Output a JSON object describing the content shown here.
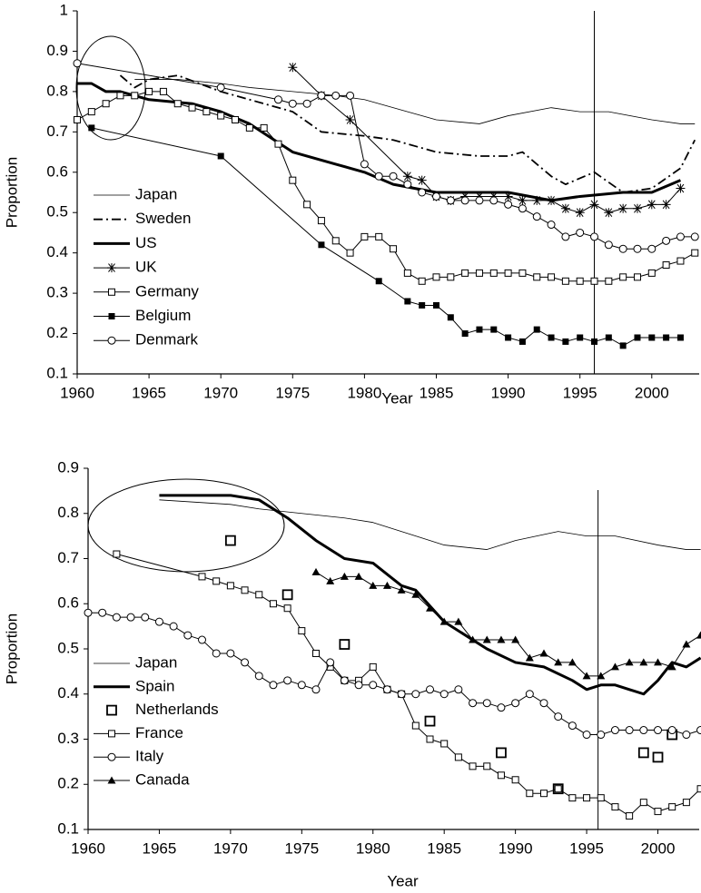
{
  "chart_data": [
    {
      "type": "line",
      "xlabel": "Year",
      "ylabel": "Proportion",
      "xlim": [
        1960,
        2003.3
      ],
      "xticks": [
        1960,
        1965,
        1970,
        1975,
        1980,
        1985,
        1990,
        1995,
        2000
      ],
      "ylim": [
        0.1,
        1
      ],
      "yticks": [
        0.1,
        0.2,
        0.3,
        0.4,
        0.5,
        0.6,
        0.7,
        0.8,
        0.9,
        1
      ],
      "reference_x": 1996,
      "series": [
        {
          "name": "Japan",
          "color": "#000000",
          "width": 0.8,
          "marker": "none",
          "x": [
            1964,
            1967,
            1970,
            1972,
            1975,
            1978,
            1980,
            1983,
            1985,
            1988,
            1990,
            1993,
            1995,
            1997,
            2000,
            2002,
            2003
          ],
          "values": [
            0.83,
            0.83,
            0.82,
            0.81,
            0.8,
            0.79,
            0.78,
            0.75,
            0.73,
            0.72,
            0.74,
            0.76,
            0.75,
            0.75,
            0.73,
            0.72,
            0.72
          ]
        },
        {
          "name": "Sweden",
          "color": "#000000",
          "width": 1.8,
          "marker": "none",
          "dash": "10 4 2 4",
          "x": [
            1963,
            1964,
            1965,
            1967,
            1970,
            1972,
            1975,
            1977,
            1980,
            1982,
            1985,
            1988,
            1990,
            1991,
            1993,
            1994,
            1996,
            1998,
            2000,
            2002,
            2003
          ],
          "values": [
            0.84,
            0.81,
            0.83,
            0.84,
            0.8,
            0.78,
            0.75,
            0.7,
            0.69,
            0.68,
            0.65,
            0.64,
            0.64,
            0.65,
            0.59,
            0.57,
            0.6,
            0.55,
            0.56,
            0.61,
            0.68
          ]
        },
        {
          "name": "US",
          "color": "#000000",
          "width": 3,
          "marker": "none",
          "x": [
            1960,
            1961,
            1962,
            1963,
            1965,
            1968,
            1970,
            1972,
            1975,
            1978,
            1980,
            1982,
            1985,
            1988,
            1990,
            1993,
            1995,
            1998,
            2000,
            2002
          ],
          "values": [
            0.82,
            0.82,
            0.8,
            0.8,
            0.78,
            0.77,
            0.75,
            0.72,
            0.65,
            0.62,
            0.6,
            0.57,
            0.55,
            0.55,
            0.55,
            0.53,
            0.54,
            0.55,
            0.55,
            0.58
          ]
        },
        {
          "name": "UK",
          "color": "#000000",
          "width": 1,
          "marker": "star",
          "x": [
            1975,
            1977,
            1979,
            1983,
            1984,
            1985,
            1986,
            1987,
            1988,
            1989,
            1990,
            1991,
            1992,
            1993,
            1994,
            1995,
            1996,
            1997,
            1998,
            1999,
            2000,
            2001,
            2002
          ],
          "values": [
            0.86,
            0.79,
            0.73,
            0.59,
            0.58,
            0.54,
            0.53,
            0.54,
            0.54,
            0.54,
            0.54,
            0.53,
            0.53,
            0.53,
            0.51,
            0.5,
            0.52,
            0.5,
            0.51,
            0.51,
            0.52,
            0.52,
            0.56
          ]
        },
        {
          "name": "Germany",
          "color": "#000000",
          "width": 1,
          "marker": "open-square",
          "x": [
            1960,
            1961,
            1962,
            1963,
            1964,
            1965,
            1966,
            1967,
            1968,
            1969,
            1970,
            1971,
            1972,
            1973,
            1974,
            1975,
            1976,
            1977,
            1978,
            1979,
            1980,
            1981,
            1982,
            1983,
            1984,
            1985,
            1986,
            1987,
            1988,
            1989,
            1990,
            1991,
            1992,
            1993,
            1994,
            1995,
            1996,
            1997,
            1998,
            1999,
            2000,
            2001,
            2002,
            2003
          ],
          "values": [
            0.73,
            0.75,
            0.77,
            0.79,
            0.79,
            0.8,
            0.8,
            0.77,
            0.76,
            0.75,
            0.74,
            0.73,
            0.71,
            0.71,
            0.67,
            0.58,
            0.52,
            0.48,
            0.43,
            0.4,
            0.44,
            0.44,
            0.41,
            0.35,
            0.33,
            0.34,
            0.34,
            0.35,
            0.35,
            0.35,
            0.35,
            0.35,
            0.34,
            0.34,
            0.33,
            0.33,
            0.33,
            0.33,
            0.34,
            0.34,
            0.35,
            0.37,
            0.38,
            0.4
          ]
        },
        {
          "name": "Belgium",
          "color": "#000000",
          "width": 1,
          "marker": "filled-square",
          "x": [
            1961,
            1970,
            1977,
            1981,
            1983,
            1984,
            1985,
            1986,
            1987,
            1988,
            1989,
            1990,
            1991,
            1992,
            1993,
            1994,
            1995,
            1996,
            1997,
            1998,
            1999,
            2000,
            2001,
            2002
          ],
          "values": [
            0.71,
            0.64,
            0.42,
            0.33,
            0.28,
            0.27,
            0.27,
            0.24,
            0.2,
            0.21,
            0.21,
            0.19,
            0.18,
            0.21,
            0.19,
            0.18,
            0.19,
            0.18,
            0.19,
            0.17,
            0.19,
            0.19,
            0.19,
            0.19
          ]
        },
        {
          "name": "Denmark",
          "color": "#000000",
          "width": 1,
          "marker": "open-circle",
          "x": [
            1960,
            1970,
            1974,
            1975,
            1976,
            1977,
            1978,
            1979,
            1980,
            1981,
            1982,
            1983,
            1984,
            1985,
            1986,
            1987,
            1988,
            1989,
            1990,
            1991,
            1992,
            1993,
            1994,
            1995,
            1996,
            1997,
            1998,
            1999,
            2000,
            2001,
            2002,
            2003
          ],
          "values": [
            0.87,
            0.81,
            0.78,
            0.77,
            0.77,
            0.79,
            0.79,
            0.79,
            0.62,
            0.59,
            0.59,
            0.57,
            0.55,
            0.54,
            0.53,
            0.53,
            0.53,
            0.53,
            0.52,
            0.51,
            0.49,
            0.47,
            0.44,
            0.45,
            0.44,
            0.42,
            0.41,
            0.41,
            0.41,
            0.43,
            0.44,
            0.44
          ]
        }
      ]
    },
    {
      "type": "line",
      "xlabel": "Year",
      "ylabel": "Proportion",
      "xlim": [
        1960,
        2002.9
      ],
      "xticks": [
        1960,
        1965,
        1970,
        1975,
        1980,
        1985,
        1990,
        1995,
        2000
      ],
      "ylim": [
        0.1,
        0.9
      ],
      "yticks": [
        0.1,
        0.2,
        0.3,
        0.4,
        0.5,
        0.6,
        0.7,
        0.8,
        0.9
      ],
      "reference_x": 1995.8,
      "series": [
        {
          "name": "Japan",
          "color": "#000000",
          "width": 0.8,
          "marker": "none",
          "x": [
            1965,
            1970,
            1972,
            1975,
            1978,
            1980,
            1983,
            1985,
            1988,
            1990,
            1993,
            1995,
            1997,
            2000,
            2002,
            2003
          ],
          "values": [
            0.83,
            0.82,
            0.81,
            0.8,
            0.79,
            0.78,
            0.75,
            0.73,
            0.72,
            0.74,
            0.76,
            0.75,
            0.75,
            0.73,
            0.72,
            0.72
          ]
        },
        {
          "name": "Spain",
          "color": "#000000",
          "width": 3,
          "marker": "none",
          "x": [
            1965,
            1968,
            1970,
            1972,
            1974,
            1976,
            1978,
            1980,
            1982,
            1983,
            1985,
            1987,
            1988,
            1990,
            1992,
            1994,
            1995,
            1996,
            1997,
            1998,
            1999,
            2000,
            2001,
            2002,
            2003
          ],
          "values": [
            0.84,
            0.84,
            0.84,
            0.83,
            0.79,
            0.74,
            0.7,
            0.69,
            0.64,
            0.63,
            0.56,
            0.52,
            0.5,
            0.47,
            0.46,
            0.43,
            0.41,
            0.42,
            0.42,
            0.41,
            0.4,
            0.43,
            0.47,
            0.46,
            0.48
          ]
        },
        {
          "name": "Netherlands",
          "color": "#000000",
          "width": 0,
          "marker": "big-square",
          "x": [
            1970,
            1974,
            1978,
            1984,
            1989,
            1993,
            1999,
            2000,
            2001
          ],
          "values": [
            0.74,
            0.62,
            0.51,
            0.34,
            0.27,
            0.19,
            0.27,
            0.26,
            0.31
          ]
        },
        {
          "name": "France",
          "color": "#000000",
          "width": 1,
          "marker": "open-square",
          "x": [
            1962,
            1968,
            1969,
            1970,
            1971,
            1972,
            1973,
            1974,
            1975,
            1976,
            1977,
            1978,
            1979,
            1980,
            1981,
            1982,
            1983,
            1984,
            1985,
            1986,
            1987,
            1988,
            1989,
            1990,
            1991,
            1992,
            1993,
            1994,
            1995,
            1996,
            1997,
            1998,
            1999,
            2000,
            2001,
            2002,
            2003
          ],
          "values": [
            0.71,
            0.66,
            0.65,
            0.64,
            0.63,
            0.62,
            0.6,
            0.59,
            0.54,
            0.49,
            0.46,
            0.43,
            0.43,
            0.46,
            0.41,
            0.4,
            0.33,
            0.3,
            0.29,
            0.26,
            0.24,
            0.24,
            0.22,
            0.21,
            0.18,
            0.18,
            0.19,
            0.17,
            0.17,
            0.17,
            0.15,
            0.13,
            0.16,
            0.14,
            0.15,
            0.16,
            0.19
          ]
        },
        {
          "name": "Italy",
          "color": "#000000",
          "width": 1,
          "marker": "open-circle",
          "x": [
            1960,
            1961,
            1962,
            1963,
            1964,
            1965,
            1966,
            1967,
            1968,
            1969,
            1970,
            1971,
            1972,
            1973,
            1974,
            1975,
            1976,
            1977,
            1978,
            1979,
            1980,
            1981,
            1982,
            1983,
            1984,
            1985,
            1986,
            1987,
            1988,
            1989,
            1990,
            1991,
            1992,
            1993,
            1994,
            1995,
            1996,
            1997,
            1998,
            1999,
            2000,
            2001,
            2002,
            2003
          ],
          "values": [
            0.58,
            0.58,
            0.57,
            0.57,
            0.57,
            0.56,
            0.55,
            0.53,
            0.52,
            0.49,
            0.49,
            0.47,
            0.44,
            0.42,
            0.43,
            0.42,
            0.41,
            0.47,
            0.43,
            0.42,
            0.42,
            0.41,
            0.4,
            0.4,
            0.41,
            0.4,
            0.41,
            0.38,
            0.38,
            0.37,
            0.38,
            0.4,
            0.38,
            0.35,
            0.33,
            0.31,
            0.31,
            0.32,
            0.32,
            0.32,
            0.32,
            0.32,
            0.31,
            0.32
          ]
        },
        {
          "name": "Canada",
          "color": "#000000",
          "width": 1,
          "marker": "triangle",
          "x": [
            1976,
            1977,
            1978,
            1979,
            1980,
            1981,
            1982,
            1983,
            1984,
            1985,
            1986,
            1987,
            1988,
            1989,
            1990,
            1991,
            1992,
            1993,
            1994,
            1995,
            1996,
            1997,
            1998,
            1999,
            2000,
            2001,
            2002,
            2003
          ],
          "values": [
            0.67,
            0.65,
            0.66,
            0.66,
            0.64,
            0.64,
            0.63,
            0.62,
            0.59,
            0.56,
            0.56,
            0.52,
            0.52,
            0.52,
            0.52,
            0.48,
            0.49,
            0.47,
            0.47,
            0.44,
            0.44,
            0.46,
            0.47,
            0.47,
            0.47,
            0.46,
            0.51,
            0.53
          ]
        }
      ]
    }
  ]
}
